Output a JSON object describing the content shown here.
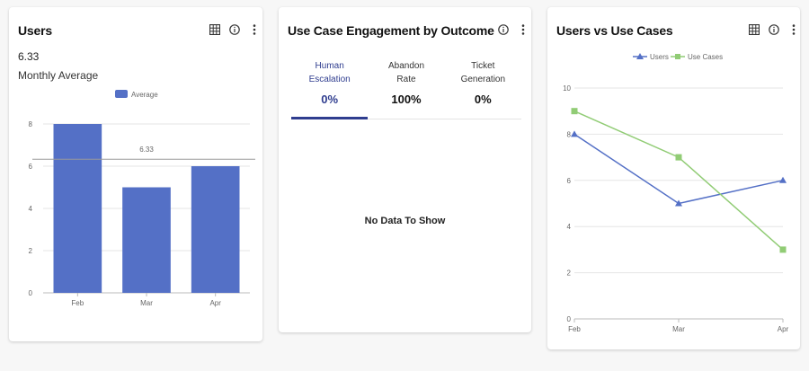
{
  "users_card": {
    "title": "Users",
    "stat_value": "6.33",
    "stat_label": "Monthly Average",
    "legend_label": "Average",
    "icons": [
      "grid-icon",
      "info-icon",
      "more-vert-icon"
    ]
  },
  "engagement_card": {
    "title": "Use Case Engagement by Outcome",
    "tabs": [
      {
        "line1": "Human",
        "line2": "Escalation",
        "value": "0%",
        "active": true
      },
      {
        "line1": "Abandon",
        "line2": "Rate",
        "value": "100%",
        "active": false
      },
      {
        "line1": "Ticket",
        "line2": "Generation",
        "value": "0%",
        "active": false
      }
    ],
    "empty_message": "No Data To Show",
    "icons": [
      "info-icon",
      "more-vert-icon"
    ]
  },
  "line_card": {
    "title": "Users vs Use Cases",
    "icons": [
      "grid-icon",
      "info-icon",
      "more-vert-icon"
    ]
  },
  "colors": {
    "bar": "#5470c6",
    "users_line": "#5470c6",
    "use_cases_line": "#91cc75",
    "grid": "#e6e6e6",
    "axis_text": "#666666",
    "active_tab": "#2f3d8f",
    "average_line": "#999999"
  },
  "chart_data": [
    {
      "type": "bar",
      "categories": [
        "Feb",
        "Mar",
        "Apr"
      ],
      "series": [
        {
          "name": "Average",
          "values": [
            8,
            5,
            6
          ]
        }
      ],
      "ylim": [
        0,
        8
      ],
      "yticks": [
        0,
        2,
        4,
        6,
        8
      ],
      "average_markline": 6.33,
      "average_label": "6.33",
      "legend": "top-center",
      "grid": true
    },
    {
      "type": "line",
      "categories": [
        "Feb",
        "Mar",
        "Apr"
      ],
      "series": [
        {
          "name": "Users",
          "values": [
            8,
            5,
            6
          ],
          "marker": "triangle"
        },
        {
          "name": "Use Cases",
          "values": [
            9,
            7,
            3
          ],
          "marker": "square"
        }
      ],
      "ylim": [
        0,
        10
      ],
      "yticks": [
        0,
        2,
        4,
        6,
        8,
        10
      ],
      "legend": "top-center",
      "grid": true
    }
  ]
}
